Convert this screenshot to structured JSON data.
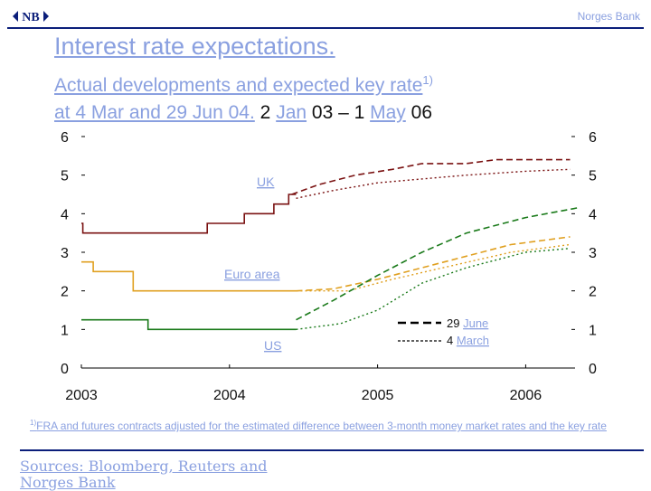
{
  "header": {
    "bank_name": "Norges Bank",
    "logo_text": "NB"
  },
  "title": "Interest rate expectations.",
  "subtitle": {
    "line1": "Actual developments and expected key rate",
    "line1_sup": "1)",
    "line2_a": "at 4 Mar and 29 Jun 04.",
    "line2_b": "2",
    "line2_c": "Jan",
    "line2_d": "03 – 1",
    "line2_e": "May",
    "line2_f": "06"
  },
  "chart_data": {
    "type": "line",
    "title": "Actual developments and expected key rate at 4 Mar and 29 Jun 04",
    "xlabel": "",
    "ylabel": "",
    "xlim": [
      2003.0,
      2006.3333
    ],
    "ylim": [
      0,
      6
    ],
    "x_ticks": [
      "2003",
      "2004",
      "2005",
      "2006"
    ],
    "x_tick_values": [
      2003.0,
      2004.0,
      2005.0,
      2006.0
    ],
    "y_ticks": [
      "0",
      "1",
      "2",
      "3",
      "4",
      "5",
      "6"
    ],
    "y_tick_values": [
      0,
      1,
      2,
      3,
      4,
      5,
      6
    ],
    "legend": [
      {
        "label": "29",
        "label_link": "June",
        "style": "dashed"
      },
      {
        "label": "4",
        "label_link": "March",
        "style": "dotted"
      }
    ],
    "annotations": {
      "uk": "UK",
      "euro": "Euro area",
      "us": "US"
    },
    "series": [
      {
        "name": "UK actual",
        "color": "#7a1212",
        "style": "solid",
        "points": [
          [
            2003.0,
            3.75
          ],
          [
            2003.01,
            3.75
          ],
          [
            2003.01,
            3.5
          ],
          [
            2003.15,
            3.5
          ],
          [
            2003.15,
            3.5
          ],
          [
            2003.5,
            3.5
          ],
          [
            2003.5,
            3.5
          ],
          [
            2003.52,
            3.5
          ],
          [
            2003.52,
            3.5
          ],
          [
            2003.85,
            3.5
          ],
          [
            2003.85,
            3.75
          ],
          [
            2004.1,
            3.75
          ],
          [
            2004.1,
            4.0
          ],
          [
            2004.3,
            4.0
          ],
          [
            2004.3,
            4.25
          ],
          [
            2004.4,
            4.25
          ],
          [
            2004.4,
            4.5
          ],
          [
            2004.45,
            4.5
          ]
        ]
      },
      {
        "name": "UK 29 June",
        "color": "#7a1212",
        "style": "dashed",
        "points": [
          [
            2004.42,
            4.5
          ],
          [
            2004.6,
            4.75
          ],
          [
            2004.85,
            5.0
          ],
          [
            2005.1,
            5.15
          ],
          [
            2005.3,
            5.3
          ],
          [
            2005.6,
            5.3
          ],
          [
            2005.8,
            5.4
          ],
          [
            2006.0,
            5.4
          ],
          [
            2006.3,
            5.4
          ]
        ]
      },
      {
        "name": "UK 4 March",
        "color": "#7a1212",
        "style": "dotted",
        "points": [
          [
            2004.45,
            4.4
          ],
          [
            2004.7,
            4.6
          ],
          [
            2005.0,
            4.8
          ],
          [
            2005.3,
            4.9
          ],
          [
            2005.6,
            5.0
          ],
          [
            2006.0,
            5.1
          ],
          [
            2006.3,
            5.15
          ]
        ]
      },
      {
        "name": "Euro area actual",
        "color": "#e0a020",
        "style": "solid",
        "points": [
          [
            2003.0,
            2.75
          ],
          [
            2003.08,
            2.75
          ],
          [
            2003.08,
            2.5
          ],
          [
            2003.35,
            2.5
          ],
          [
            2003.35,
            2.0
          ],
          [
            2004.45,
            2.0
          ]
        ]
      },
      {
        "name": "Euro area 29 June",
        "color": "#e0a020",
        "style": "dashed",
        "points": [
          [
            2004.45,
            2.0
          ],
          [
            2004.7,
            2.05
          ],
          [
            2005.0,
            2.3
          ],
          [
            2005.3,
            2.6
          ],
          [
            2005.6,
            2.9
          ],
          [
            2005.9,
            3.2
          ],
          [
            2006.3,
            3.4
          ]
        ]
      },
      {
        "name": "Euro area 4 March",
        "color": "#e0a020",
        "style": "dotted",
        "points": [
          [
            2004.45,
            2.0
          ],
          [
            2004.8,
            2.0
          ],
          [
            2005.1,
            2.3
          ],
          [
            2005.5,
            2.65
          ],
          [
            2005.9,
            3.0
          ],
          [
            2006.3,
            3.2
          ]
        ]
      },
      {
        "name": "US actual",
        "color": "#1a7a1a",
        "style": "solid",
        "points": [
          [
            2003.0,
            1.25
          ],
          [
            2003.45,
            1.25
          ],
          [
            2003.45,
            1.0
          ],
          [
            2004.45,
            1.0
          ]
        ]
      },
      {
        "name": "US 29 June",
        "color": "#1a7a1a",
        "style": "dashed",
        "points": [
          [
            2004.45,
            1.25
          ],
          [
            2004.7,
            1.75
          ],
          [
            2005.0,
            2.4
          ],
          [
            2005.3,
            3.0
          ],
          [
            2005.6,
            3.5
          ],
          [
            2006.0,
            3.9
          ],
          [
            2006.35,
            4.15
          ]
        ]
      },
      {
        "name": "US 4 March",
        "color": "#1a7a1a",
        "style": "dotted",
        "points": [
          [
            2004.45,
            1.0
          ],
          [
            2004.75,
            1.15
          ],
          [
            2005.0,
            1.5
          ],
          [
            2005.3,
            2.2
          ],
          [
            2005.6,
            2.6
          ],
          [
            2006.0,
            3.0
          ],
          [
            2006.3,
            3.1
          ]
        ]
      }
    ]
  },
  "footnote": {
    "sup": "1)",
    "text": "FRA and futures contracts adjusted for the estimated difference between 3-month money market rates and the key rate"
  },
  "sources": "Sources: Bloomberg, Reuters and Norges Bank",
  "colors": {
    "accent": "#0b1e7a",
    "link": "#8aa0e0",
    "uk": "#7a1212",
    "euro": "#e0a020",
    "us": "#1a7a1a"
  }
}
